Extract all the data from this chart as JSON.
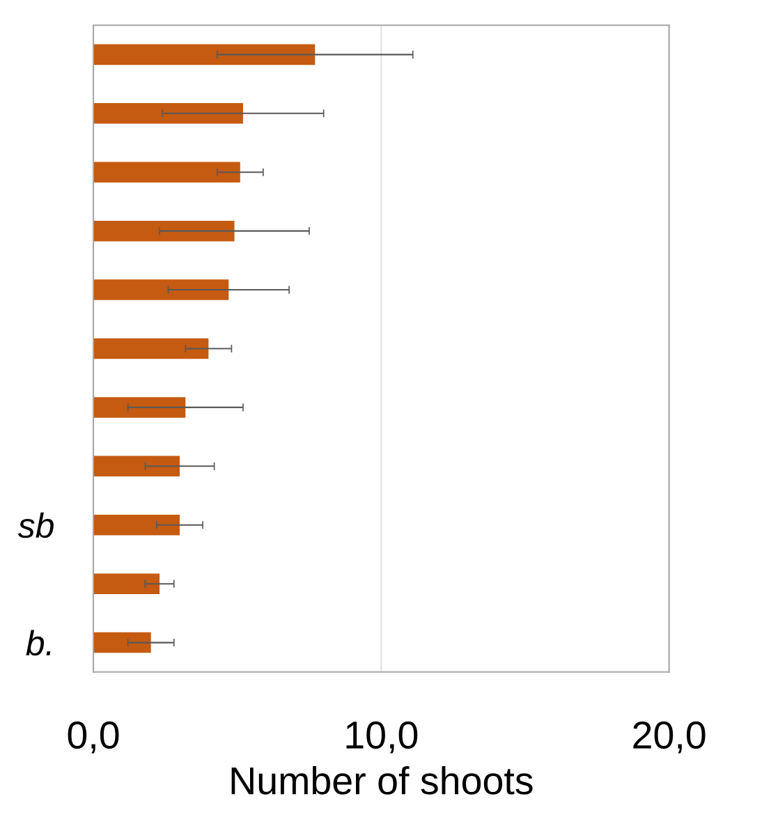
{
  "chart_data": {
    "type": "bar",
    "orientation": "horizontal",
    "xlabel": "Number of shoots",
    "categories": [
      null,
      null,
      null,
      null,
      null,
      null,
      null,
      null,
      "sb",
      null,
      "b."
    ],
    "values": [
      7.7,
      5.2,
      5.1,
      4.9,
      4.7,
      4.0,
      3.2,
      3.0,
      3.0,
      2.3,
      2.0
    ],
    "errors": [
      3.4,
      2.8,
      0.8,
      2.6,
      2.1,
      0.8,
      2.0,
      1.2,
      0.8,
      0.5,
      0.8
    ],
    "color": "#c55a11",
    "xlim": [
      0,
      20
    ],
    "xticks": [
      {
        "value": 0,
        "label": "0,0"
      },
      {
        "value": 10,
        "label": "10,0"
      },
      {
        "value": 20,
        "label": "20,0"
      }
    ],
    "grid": "x"
  }
}
